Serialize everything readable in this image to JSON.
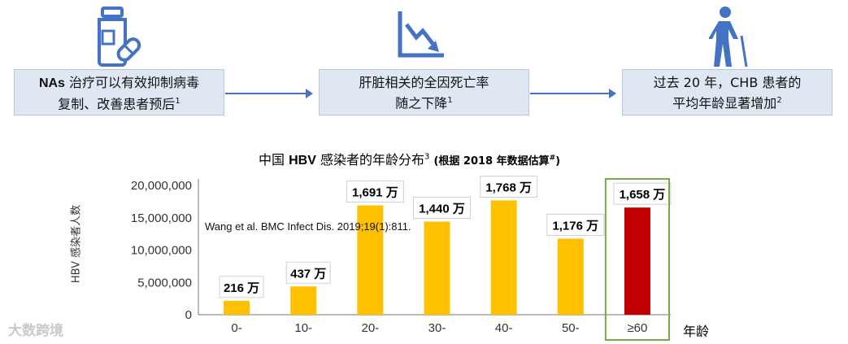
{
  "flow": {
    "steps": [
      {
        "icon": "medicine-bottle-icon",
        "line1_bold": "NAs",
        "line1": " 治疗可以有效抑制病毒",
        "line2": "复制、改善患者预后",
        "sup": "1"
      },
      {
        "icon": "declining-chart-icon",
        "line1_bold": "",
        "line1": "肝脏相关的全因死亡率",
        "line2": "随之下降",
        "sup": "1"
      },
      {
        "icon": "elderly-person-icon",
        "line1_bold": "",
        "line1": "过去 20 年，CHB 患者的",
        "line2": "平均年龄显著增加",
        "sup": "2"
      }
    ]
  },
  "chart_data": {
    "type": "bar",
    "title_pre": "中国 ",
    "title_bold": "HBV",
    "title_post": " 感染者的年龄分布",
    "title_sup": "3",
    "subtitle": "(根据 2018 年数据估算",
    "subtitle_sup": "#",
    "subtitle_end": ")",
    "ylabel": "HBV 感染者人数",
    "xlabel": "年龄",
    "categories": [
      "0-",
      "10-",
      "20-",
      "30-",
      "40-",
      "50-",
      "≥60"
    ],
    "values": [
      2160000,
      4370000,
      16910000,
      14400000,
      17680000,
      11760000,
      16580000
    ],
    "data_labels": [
      "216 万",
      "437 万",
      "1,691 万",
      "1,440 万",
      "1,768 万",
      "1,176 万",
      "1,658 万"
    ],
    "yticks": [
      "0",
      "5,000,000",
      "10,000,000",
      "15,000,000",
      "20,000,000"
    ],
    "ylim": [
      0,
      20000000
    ],
    "bar_color": "#ffc000",
    "highlight_color": "#c00000",
    "highlight_index": 6,
    "highlight_frame_color": "#70ad47"
  },
  "citation": "Wang et al. BMC Infect Dis. 2019;19(1):811.",
  "watermark": "大数跨境",
  "colors": {
    "arrow": "#4472c4",
    "icon": "#4472c4",
    "box_fill": "#dfe7f2"
  }
}
